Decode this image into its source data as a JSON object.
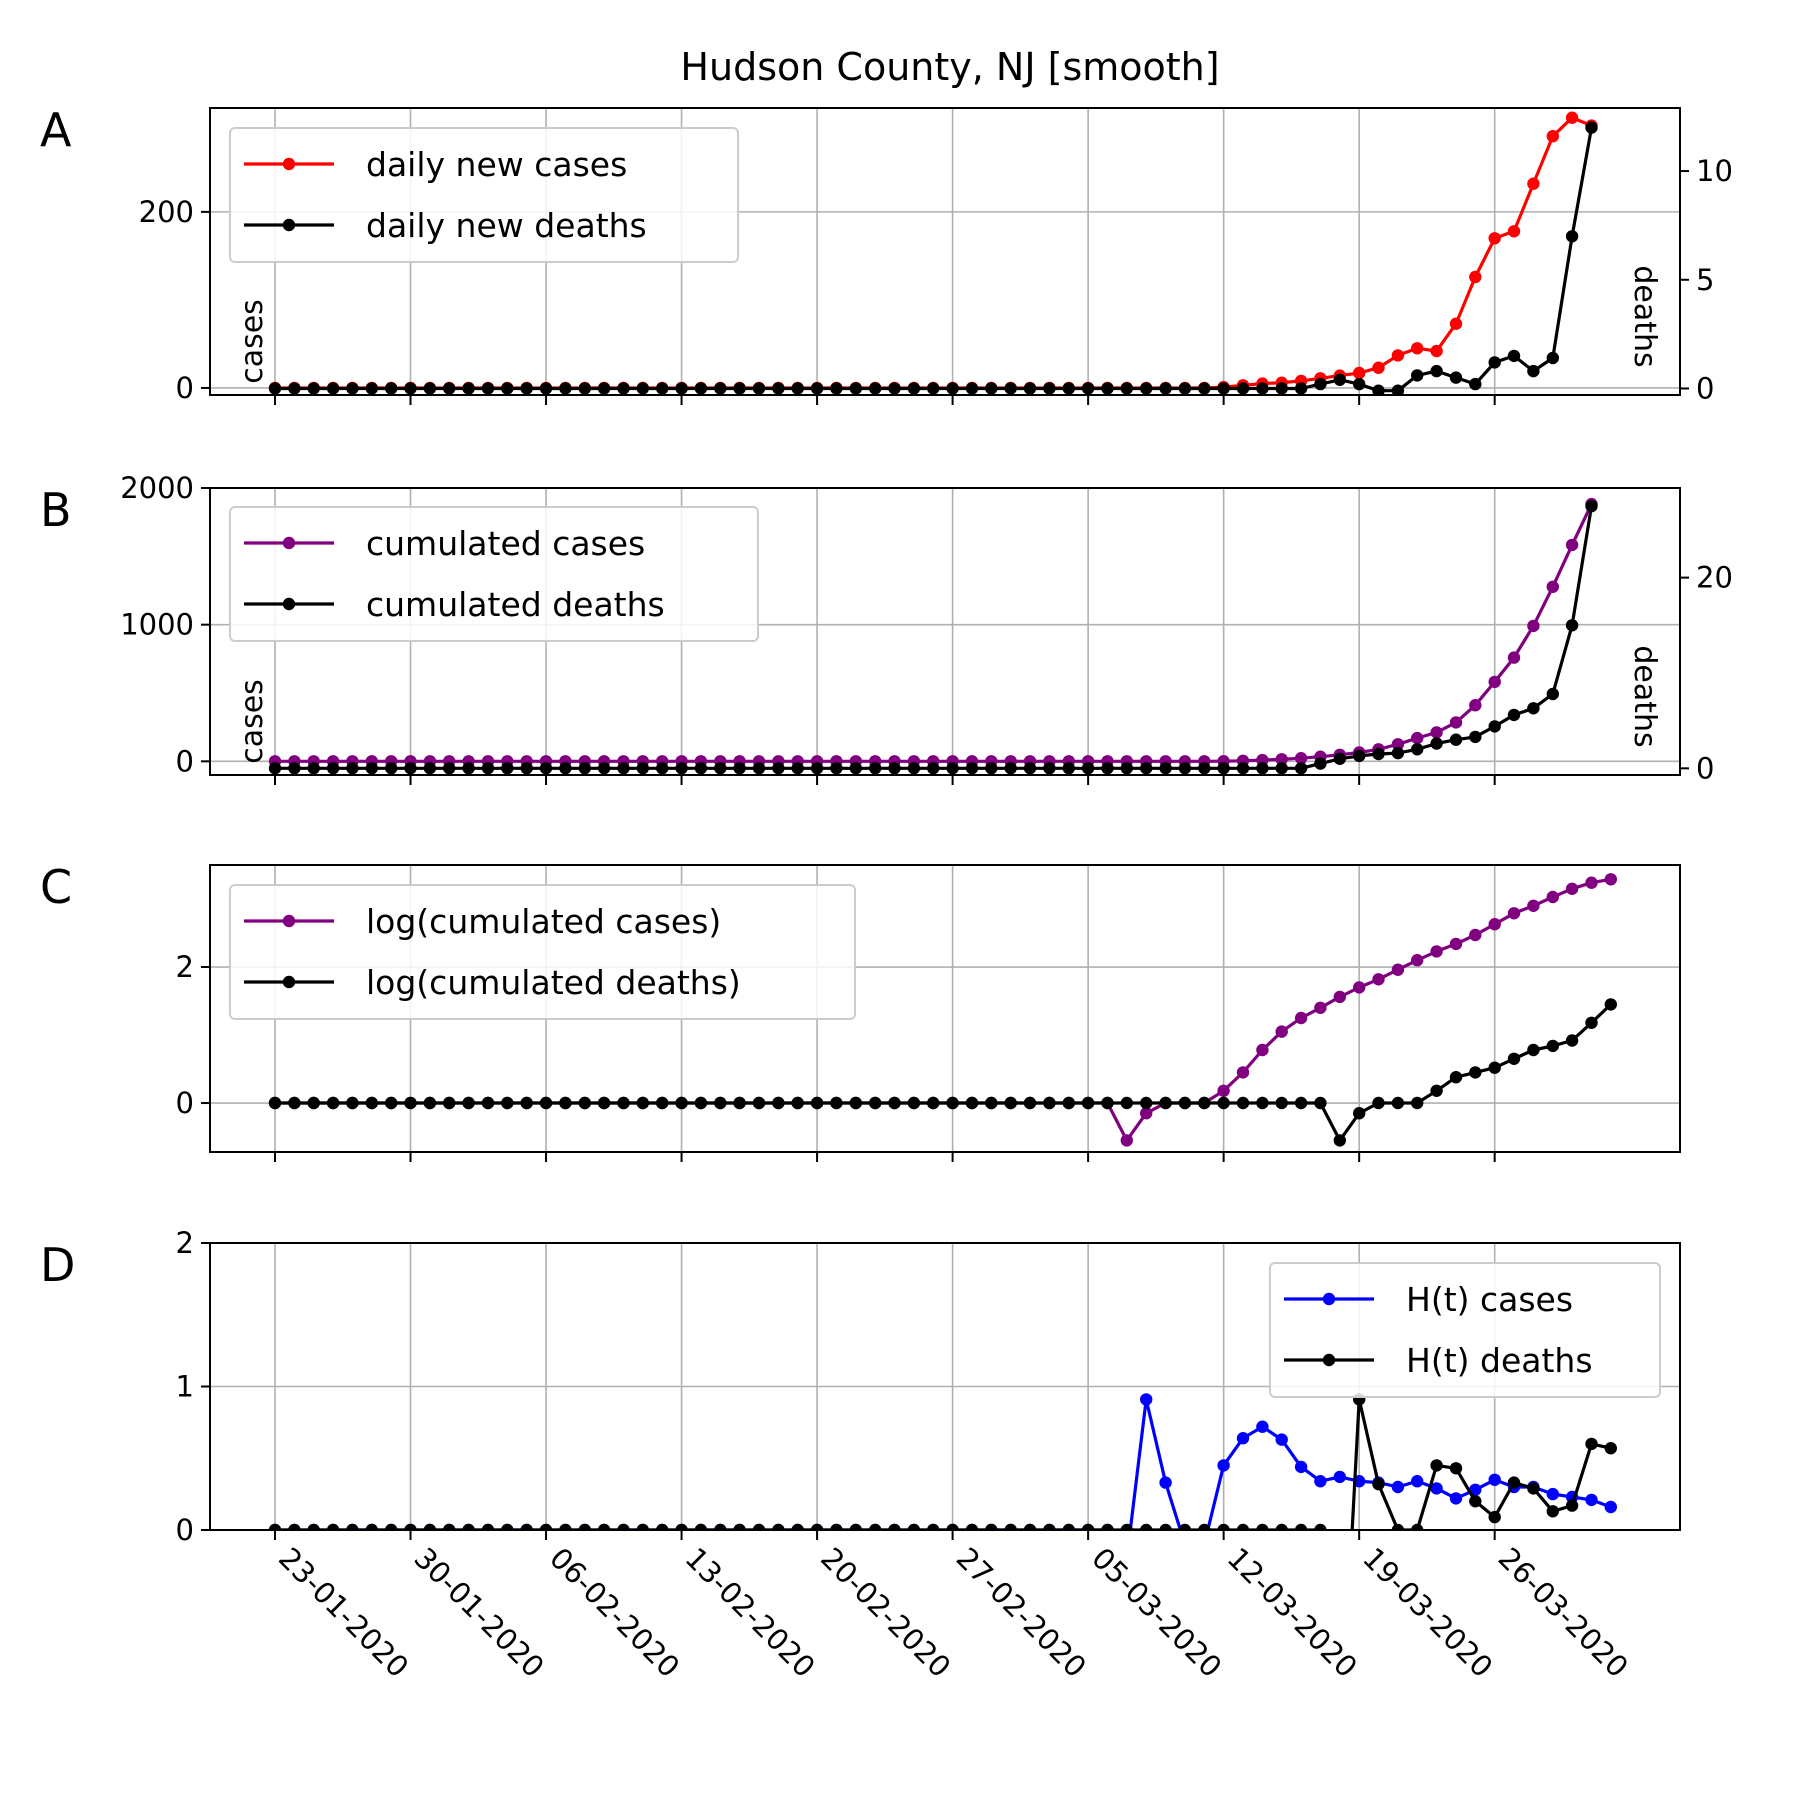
{
  "figure": {
    "title": "Hudson County, NJ [smooth]",
    "x_tick_labels": [
      "23-01-2020",
      "30-01-2020",
      "06-02-2020",
      "13-02-2020",
      "20-02-2020",
      "27-02-2020",
      "05-03-2020",
      "12-03-2020",
      "19-03-2020",
      "26-03-2020"
    ]
  },
  "chart_data": [
    {
      "panel": "A",
      "type": "line",
      "grid": true,
      "legend_position": "top-left",
      "x_start": "23-01-2020",
      "x_end": "31-03-2020",
      "left_axis": {
        "label": "cases",
        "ylim": [
          -8,
          318
        ],
        "ticks": [
          0,
          200
        ]
      },
      "right_axis": {
        "label": "deaths",
        "ylim": [
          -0.3,
          12.9
        ],
        "ticks": [
          0,
          5,
          10
        ]
      },
      "series": [
        {
          "name": "daily new cases",
          "color": "#ff0000",
          "axis": "left",
          "values": [
            0,
            0,
            0,
            0,
            0,
            0,
            0,
            0,
            0,
            0,
            0,
            0,
            0,
            0,
            0,
            0,
            0,
            0,
            0,
            0,
            0,
            0,
            0,
            0,
            0,
            0,
            0,
            0,
            0,
            0,
            0,
            0,
            0,
            0,
            0,
            0,
            0,
            0,
            0,
            0,
            0,
            0,
            0,
            0,
            0,
            0,
            0,
            0,
            0,
            1,
            3,
            5,
            6,
            8,
            11,
            14,
            17,
            23,
            37,
            45,
            42,
            73,
            126,
            170,
            178,
            232,
            286,
            307,
            298
          ]
        },
        {
          "name": "daily new deaths",
          "color": "#000000",
          "axis": "right",
          "values": [
            0,
            0,
            0,
            0,
            0,
            0,
            0,
            0,
            0,
            0,
            0,
            0,
            0,
            0,
            0,
            0,
            0,
            0,
            0,
            0,
            0,
            0,
            0,
            0,
            0,
            0,
            0,
            0,
            0,
            0,
            0,
            0,
            0,
            0,
            0,
            0,
            0,
            0,
            0,
            0,
            0,
            0,
            0,
            0,
            0,
            0,
            0,
            0,
            0,
            0,
            0,
            0,
            0,
            0,
            0.2,
            0.4,
            0.2,
            -0.1,
            -0.1,
            0.6,
            0.8,
            0.5,
            0.2,
            1.2,
            1.5,
            0.8,
            1.4,
            7,
            12
          ]
        }
      ]
    },
    {
      "panel": "B",
      "type": "line",
      "grid": true,
      "legend_position": "top-left",
      "x_start": "23-01-2020",
      "x_end": "31-03-2020",
      "left_axis": {
        "label": "cases",
        "ylim": [
          -100,
          2000
        ],
        "ticks": [
          0,
          1000,
          2000
        ]
      },
      "right_axis": {
        "label": "deaths",
        "ylim": [
          -0.7,
          29.4
        ],
        "ticks": [
          0,
          20
        ]
      },
      "series": [
        {
          "name": "cumulated cases",
          "color": "#800080",
          "axis": "left",
          "values": [
            0,
            0,
            0,
            0,
            0,
            0,
            0,
            0,
            0,
            0,
            0,
            0,
            0,
            0,
            0,
            0,
            0,
            0,
            0,
            0,
            0,
            0,
            0,
            0,
            0,
            0,
            0,
            0,
            0,
            0,
            0,
            0,
            0,
            0,
            0,
            0,
            0,
            0,
            0,
            0,
            0,
            0,
            0,
            0,
            0,
            0,
            0,
            0,
            0,
            1,
            4,
            9,
            15,
            23,
            34,
            48,
            65,
            88,
            125,
            170,
            212,
            285,
            411,
            581,
            759,
            991,
            1277,
            1584,
            1882
          ]
        },
        {
          "name": "cumulated deaths",
          "color": "#000000",
          "axis": "right",
          "values": [
            0,
            0,
            0,
            0,
            0,
            0,
            0,
            0,
            0,
            0,
            0,
            0,
            0,
            0,
            0,
            0,
            0,
            0,
            0,
            0,
            0,
            0,
            0,
            0,
            0,
            0,
            0,
            0,
            0,
            0,
            0,
            0,
            0,
            0,
            0,
            0,
            0,
            0,
            0,
            0,
            0,
            0,
            0,
            0,
            0,
            0,
            0,
            0,
            0,
            0,
            0,
            0,
            0,
            0,
            0.5,
            1,
            1.3,
            1.5,
            1.6,
            2,
            2.6,
            3,
            3.3,
            4.4,
            5.6,
            6.3,
            7.8,
            15,
            27.5
          ]
        }
      ]
    },
    {
      "panel": "C",
      "type": "line",
      "grid": true,
      "legend_position": "top-left",
      "x_start": "23-01-2020",
      "x_end": "31-03-2020",
      "left_axis": {
        "label": "",
        "ylim": [
          -0.72,
          3.5
        ],
        "ticks": [
          0,
          2
        ]
      },
      "series": [
        {
          "name": "log(cumulated cases)",
          "color": "#800080",
          "axis": "left",
          "values": [
            0,
            0,
            0,
            0,
            0,
            0,
            0,
            0,
            0,
            0,
            0,
            0,
            0,
            0,
            0,
            0,
            0,
            0,
            0,
            0,
            0,
            0,
            0,
            0,
            0,
            0,
            0,
            0,
            0,
            0,
            0,
            0,
            0,
            0,
            0,
            0,
            0,
            0,
            0,
            0,
            0,
            0,
            0,
            0,
            -0.55,
            -0.15,
            0,
            0,
            0,
            0.18,
            0.45,
            0.78,
            1.05,
            1.25,
            1.4,
            1.56,
            1.7,
            1.82,
            1.96,
            2.1,
            2.23,
            2.34,
            2.47,
            2.63,
            2.79,
            2.9,
            3.03,
            3.15,
            3.24,
            3.29
          ]
        },
        {
          "name": "log(cumulated deaths)",
          "color": "#000000",
          "axis": "left",
          "values": [
            0,
            0,
            0,
            0,
            0,
            0,
            0,
            0,
            0,
            0,
            0,
            0,
            0,
            0,
            0,
            0,
            0,
            0,
            0,
            0,
            0,
            0,
            0,
            0,
            0,
            0,
            0,
            0,
            0,
            0,
            0,
            0,
            0,
            0,
            0,
            0,
            0,
            0,
            0,
            0,
            0,
            0,
            0,
            0,
            0,
            0,
            0,
            0,
            0,
            0,
            0,
            0,
            0,
            0,
            0,
            -0.55,
            -0.15,
            0,
            0,
            0,
            0.18,
            0.38,
            0.45,
            0.52,
            0.65,
            0.78,
            0.84,
            0.92,
            1.18,
            1.45
          ]
        }
      ]
    },
    {
      "panel": "D",
      "type": "line",
      "grid": true,
      "legend_position": "top-right",
      "x_start": "23-01-2020",
      "x_end": "31-03-2020",
      "left_axis": {
        "label": "",
        "ylim": [
          0,
          2
        ],
        "ticks": [
          0,
          1,
          2
        ]
      },
      "series": [
        {
          "name": "H(t) cases",
          "color": "#0000ff",
          "axis": "left",
          "values": [
            0,
            0,
            0,
            0,
            0,
            0,
            0,
            0,
            0,
            0,
            0,
            0,
            0,
            0,
            0,
            0,
            0,
            0,
            0,
            0,
            0,
            0,
            0,
            0,
            0,
            0,
            0,
            0,
            0,
            0,
            0,
            0,
            0,
            0,
            0,
            0,
            0,
            0,
            0,
            0,
            0,
            0,
            0,
            0,
            -0.2,
            0.91,
            0.33,
            -0.1,
            -0.1,
            0.45,
            0.64,
            0.72,
            0.63,
            0.44,
            0.34,
            0.37,
            0.34,
            0.33,
            0.3,
            0.34,
            0.29,
            0.22,
            0.28,
            0.35,
            0.3,
            0.3,
            0.25,
            0.23,
            0.21,
            0.16
          ]
        },
        {
          "name": "H(t) deaths",
          "color": "#000000",
          "axis": "left",
          "values": [
            0,
            0,
            0,
            0,
            0,
            0,
            0,
            0,
            0,
            0,
            0,
            0,
            0,
            0,
            0,
            0,
            0,
            0,
            0,
            0,
            0,
            0,
            0,
            0,
            0,
            0,
            0,
            0,
            0,
            0,
            0,
            0,
            0,
            0,
            0,
            0,
            0,
            0,
            0,
            0,
            0,
            0,
            0,
            0,
            0,
            0,
            0,
            0,
            0,
            0,
            0,
            0,
            0,
            0,
            0,
            -1.6,
            0.91,
            0.32,
            0,
            0,
            0.45,
            0.43,
            0.2,
            0.09,
            0.33,
            0.29,
            0.13,
            0.17,
            0.6,
            0.57
          ]
        }
      ]
    }
  ]
}
